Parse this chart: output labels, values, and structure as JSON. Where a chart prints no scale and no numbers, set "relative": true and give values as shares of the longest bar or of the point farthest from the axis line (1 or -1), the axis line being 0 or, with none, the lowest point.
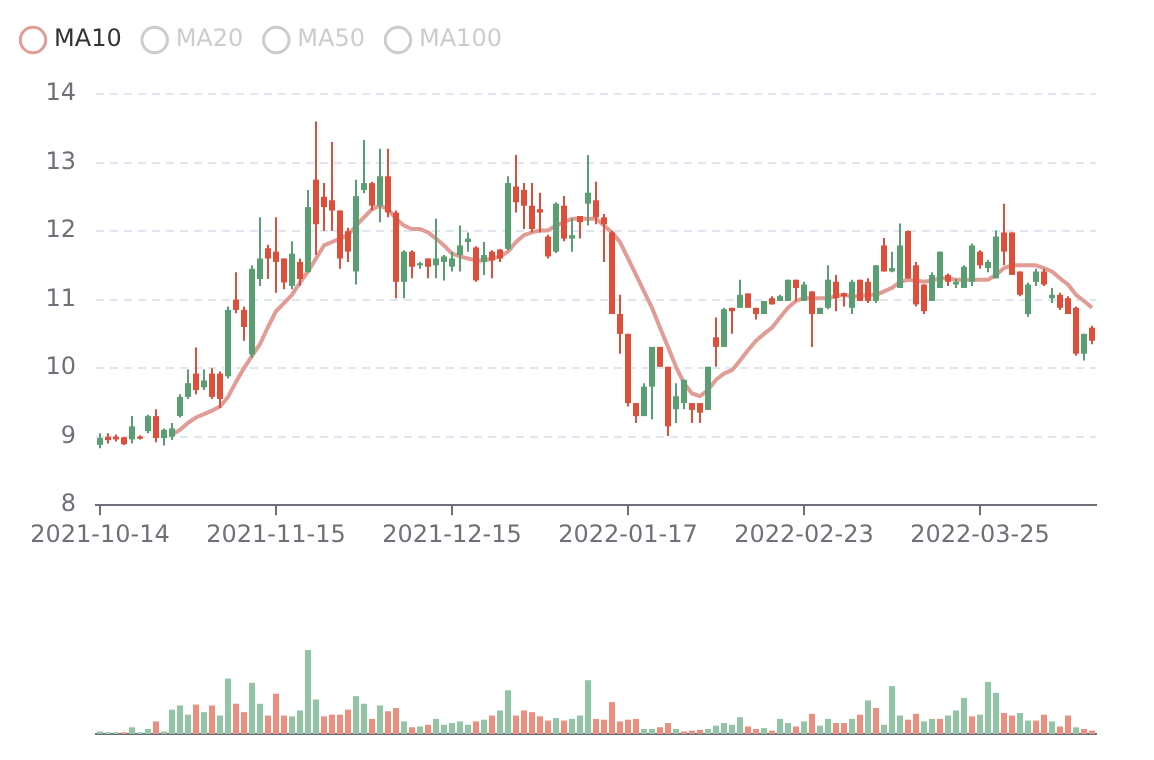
{
  "chart_data": [
    {
      "type": "candlestick",
      "legend": "top left",
      "grid": "y",
      "ylim": [
        8,
        14
      ],
      "yticks": [
        8,
        9,
        10,
        11,
        12,
        13,
        14
      ],
      "categories": [
        "2021-10-14",
        null,
        null,
        null,
        null,
        null,
        null,
        null,
        null,
        null,
        null,
        null,
        null,
        null,
        null,
        null,
        null,
        null,
        null,
        null,
        null,
        null,
        "2021-11-15",
        null,
        null,
        null,
        null,
        null,
        null,
        null,
        null,
        null,
        null,
        null,
        null,
        null,
        null,
        null,
        null,
        null,
        null,
        null,
        null,
        null,
        "2021-12-15",
        null,
        null,
        null,
        null,
        null,
        null,
        null,
        null,
        null,
        null,
        null,
        null,
        null,
        null,
        null,
        null,
        null,
        null,
        null,
        null,
        null,
        "2022-01-17",
        null,
        null,
        null,
        null,
        null,
        null,
        null,
        null,
        null,
        null,
        null,
        null,
        null,
        null,
        null,
        null,
        null,
        null,
        null,
        null,
        null,
        "2022-02-23",
        null,
        null,
        null,
        null,
        null,
        null,
        null,
        null,
        null,
        null,
        null,
        null,
        null,
        null,
        null,
        null,
        null,
        null,
        null,
        null,
        null,
        "2022-03-25",
        null,
        null,
        null,
        null,
        null,
        null,
        null,
        null,
        null,
        null,
        null,
        null,
        null,
        null
      ],
      "ohlc": [
        [
          8.88,
          9.05,
          8.83,
          8.98
        ],
        [
          9.0,
          9.05,
          8.9,
          8.95
        ],
        [
          9.0,
          9.03,
          8.93,
          8.96
        ],
        [
          8.99,
          9.0,
          8.88,
          8.89
        ],
        [
          8.96,
          9.3,
          8.9,
          9.15
        ],
        [
          9.0,
          9.02,
          8.96,
          8.98
        ],
        [
          9.08,
          9.32,
          9.05,
          9.3
        ],
        [
          9.3,
          9.4,
          8.92,
          8.98
        ],
        [
          8.98,
          9.12,
          8.87,
          9.1
        ],
        [
          9.0,
          9.2,
          8.95,
          9.12
        ],
        [
          9.3,
          9.62,
          9.28,
          9.58
        ],
        [
          9.58,
          9.98,
          9.55,
          9.78
        ],
        [
          9.92,
          10.3,
          9.62,
          9.68
        ],
        [
          9.72,
          9.98,
          9.68,
          9.82
        ],
        [
          9.92,
          10.0,
          9.55,
          9.58
        ],
        [
          9.92,
          9.95,
          9.42,
          9.55
        ],
        [
          9.88,
          10.9,
          9.85,
          10.85
        ],
        [
          11.0,
          11.4,
          10.8,
          10.85
        ],
        [
          10.85,
          10.9,
          10.4,
          10.6
        ],
        [
          10.2,
          11.5,
          10.15,
          11.45
        ],
        [
          11.3,
          12.2,
          11.2,
          11.6
        ],
        [
          11.75,
          11.8,
          11.3,
          11.6
        ],
        [
          11.7,
          12.2,
          11.1,
          11.55
        ],
        [
          11.6,
          11.6,
          11.15,
          11.25
        ],
        [
          11.2,
          11.85,
          11.15,
          11.67
        ],
        [
          11.55,
          11.6,
          11.2,
          11.3
        ],
        [
          11.4,
          12.6,
          11.4,
          12.35
        ],
        [
          12.75,
          13.6,
          11.65,
          12.1
        ],
        [
          12.5,
          12.7,
          12.0,
          12.35
        ],
        [
          12.45,
          13.3,
          12.0,
          12.3
        ],
        [
          12.3,
          12.3,
          11.45,
          11.6
        ],
        [
          12.0,
          12.05,
          11.55,
          11.7
        ],
        [
          11.41,
          12.75,
          11.22,
          12.51
        ],
        [
          12.6,
          13.33,
          12.55,
          12.7
        ],
        [
          12.7,
          12.72,
          12.3,
          12.37
        ],
        [
          12.37,
          13.2,
          12.13,
          12.8
        ],
        [
          12.8,
          13.2,
          12.2,
          12.27
        ],
        [
          12.27,
          12.3,
          11.02,
          11.26
        ],
        [
          11.26,
          11.72,
          11.02,
          11.7
        ],
        [
          11.7,
          11.72,
          11.31,
          11.48
        ],
        [
          11.5,
          11.55,
          11.45,
          11.53
        ],
        [
          11.6,
          11.6,
          11.31,
          11.48
        ],
        [
          11.5,
          12.18,
          11.31,
          11.6
        ],
        [
          11.55,
          11.65,
          11.28,
          11.63
        ],
        [
          11.48,
          11.7,
          11.41,
          11.6
        ],
        [
          11.65,
          12.08,
          11.41,
          11.79
        ],
        [
          11.84,
          11.98,
          11.7,
          11.89
        ],
        [
          11.76,
          11.78,
          11.26,
          11.28
        ],
        [
          11.55,
          11.84,
          11.36,
          11.65
        ],
        [
          11.7,
          11.72,
          11.31,
          11.57
        ],
        [
          11.73,
          11.74,
          11.55,
          11.6
        ],
        [
          11.74,
          12.8,
          11.72,
          12.7
        ],
        [
          12.65,
          13.11,
          12.27,
          12.42
        ],
        [
          12.6,
          12.7,
          12.03,
          12.37
        ],
        [
          12.37,
          12.7,
          11.98,
          12.03
        ],
        [
          12.32,
          12.56,
          11.98,
          12.27
        ],
        [
          11.92,
          11.95,
          11.6,
          11.63
        ],
        [
          11.7,
          12.42,
          11.68,
          12.4
        ],
        [
          12.37,
          12.51,
          11.85,
          11.89
        ],
        [
          11.89,
          12.18,
          11.7,
          11.94
        ],
        [
          12.22,
          12.22,
          11.89,
          12.13
        ],
        [
          12.4,
          13.11,
          12.08,
          12.56
        ],
        [
          12.45,
          12.72,
          12.1,
          12.2
        ],
        [
          12.2,
          12.25,
          11.55,
          12.1
        ],
        [
          11.98,
          12.0,
          10.79,
          10.79
        ],
        [
          10.79,
          11.07,
          10.21,
          10.5
        ],
        [
          10.5,
          10.5,
          9.44,
          9.49
        ],
        [
          9.49,
          9.49,
          9.2,
          9.3
        ],
        [
          9.3,
          9.78,
          9.3,
          9.73
        ],
        [
          9.73,
          10.31,
          9.25,
          10.31
        ],
        [
          10.31,
          10.31,
          10.02,
          10.02
        ],
        [
          10.02,
          10.02,
          9.01,
          9.15
        ],
        [
          9.4,
          9.78,
          9.2,
          9.59
        ],
        [
          9.49,
          9.83,
          9.4,
          9.83
        ],
        [
          9.49,
          9.49,
          9.2,
          9.39
        ],
        [
          9.49,
          9.49,
          9.2,
          9.35
        ],
        [
          9.39,
          10.02,
          9.39,
          10.02
        ],
        [
          10.45,
          10.74,
          10.02,
          10.31
        ],
        [
          10.31,
          10.88,
          10.31,
          10.86
        ],
        [
          10.88,
          10.88,
          10.5,
          10.83
        ],
        [
          10.88,
          11.29,
          10.88,
          11.07
        ],
        [
          11.09,
          11.09,
          10.88,
          10.88
        ],
        [
          10.88,
          10.88,
          10.71,
          10.79
        ],
        [
          10.79,
          10.98,
          10.79,
          10.98
        ],
        [
          11.02,
          11.05,
          10.93,
          10.93
        ],
        [
          10.98,
          11.07,
          10.98,
          11.05
        ],
        [
          10.98,
          11.29,
          10.98,
          11.29
        ],
        [
          11.29,
          11.29,
          10.98,
          11.17
        ],
        [
          10.98,
          11.26,
          10.98,
          11.22
        ],
        [
          11.12,
          11.12,
          10.31,
          10.79
        ],
        [
          10.79,
          10.88,
          10.79,
          10.88
        ],
        [
          10.88,
          11.5,
          10.86,
          11.29
        ],
        [
          11.26,
          11.36,
          10.83,
          11.02
        ],
        [
          11.09,
          11.1,
          10.9,
          11.05
        ],
        [
          10.88,
          11.29,
          10.79,
          11.26
        ],
        [
          11.29,
          11.29,
          10.98,
          10.98
        ],
        [
          11.26,
          11.31,
          10.95,
          10.98
        ],
        [
          10.98,
          11.5,
          10.95,
          11.5
        ],
        [
          11.79,
          11.9,
          11.41,
          11.41
        ],
        [
          11.41,
          11.7,
          11.4,
          11.46
        ],
        [
          11.17,
          12.11,
          11.17,
          11.79
        ],
        [
          12.0,
          12.01,
          11.31,
          11.31
        ],
        [
          11.5,
          11.55,
          10.9,
          10.93
        ],
        [
          11.22,
          11.22,
          10.79,
          10.83
        ],
        [
          10.98,
          11.4,
          10.98,
          11.36
        ],
        [
          11.17,
          11.7,
          11.17,
          11.7
        ],
        [
          11.36,
          11.38,
          11.2,
          11.26
        ],
        [
          11.22,
          11.3,
          11.17,
          11.26
        ],
        [
          11.17,
          11.5,
          11.17,
          11.48
        ],
        [
          11.26,
          11.82,
          11.2,
          11.79
        ],
        [
          11.7,
          11.72,
          11.45,
          11.5
        ],
        [
          11.46,
          11.58,
          11.4,
          11.55
        ],
        [
          11.31,
          12.01,
          11.31,
          11.92
        ],
        [
          11.98,
          12.4,
          11.5,
          11.7
        ],
        [
          11.98,
          11.98,
          11.36,
          11.36
        ],
        [
          11.41,
          11.41,
          11.05,
          11.07
        ],
        [
          10.79,
          11.25,
          10.75,
          11.22
        ],
        [
          11.26,
          11.45,
          11.2,
          11.41
        ],
        [
          11.41,
          11.45,
          11.2,
          11.22
        ],
        [
          11.02,
          11.17,
          10.95,
          11.07
        ],
        [
          11.07,
          11.1,
          10.85,
          10.88
        ],
        [
          11.02,
          11.05,
          10.79,
          10.79
        ],
        [
          10.88,
          10.9,
          10.18,
          10.21
        ],
        [
          10.21,
          10.5,
          10.11,
          10.5
        ],
        [
          10.59,
          10.62,
          10.35,
          10.4
        ]
      ],
      "colors": [
        "#5a9e74",
        "#dd4f3a",
        "#dd4f3a",
        "#dd4f3a",
        "#5a9e74",
        "#dd4f3a",
        "#5a9e74",
        "#dd4f3a",
        "#5a9e74",
        "#5a9e74",
        "#5a9e74",
        "#5a9e74",
        "#dd4f3a",
        "#5a9e74",
        "#dd4f3a",
        "#dd4f3a",
        "#5a9e74",
        "#dd4f3a",
        "#dd4f3a",
        "#5a9e74",
        "#5a9e74",
        "#dd4f3a",
        "#dd4f3a",
        "#dd4f3a",
        "#5a9e74",
        "#dd4f3a",
        "#5a9e74",
        "#dd4f3a",
        "#dd4f3a",
        "#dd4f3a",
        "#dd4f3a",
        "#dd4f3a",
        "#5a9e74",
        "#5a9e74",
        "#dd4f3a",
        "#5a9e74",
        "#dd4f3a",
        "#dd4f3a",
        "#5a9e74",
        "#dd4f3a",
        "#5a9e74",
        "#dd4f3a",
        "#5a9e74",
        "#5a9e74",
        "#5a9e74",
        "#5a9e74",
        "#5a9e74",
        "#dd4f3a",
        "#5a9e74",
        "#dd4f3a",
        "#dd4f3a",
        "#5a9e74",
        "#dd4f3a",
        "#dd4f3a",
        "#dd4f3a",
        "#dd4f3a",
        "#dd4f3a",
        "#5a9e74",
        "#dd4f3a",
        "#5a9e74",
        "#dd4f3a",
        "#5a9e74",
        "#dd4f3a",
        "#dd4f3a",
        "#dd4f3a",
        "#dd4f3a",
        "#dd4f3a",
        "#dd4f3a",
        "#5a9e74",
        "#5a9e74",
        "#dd4f3a",
        "#dd4f3a",
        "#5a9e74",
        "#5a9e74",
        "#dd4f3a",
        "#dd4f3a",
        "#5a9e74",
        "#dd4f3a",
        "#5a9e74",
        "#dd4f3a",
        "#5a9e74",
        "#dd4f3a",
        "#dd4f3a",
        "#5a9e74",
        "#dd4f3a",
        "#5a9e74",
        "#5a9e74",
        "#dd4f3a",
        "#5a9e74",
        "#dd4f3a",
        "#5a9e74",
        "#5a9e74",
        "#dd4f3a",
        "#dd4f3a",
        "#5a9e74",
        "#dd4f3a",
        "#dd4f3a",
        "#5a9e74",
        "#dd4f3a",
        "#5a9e74",
        "#5a9e74",
        "#dd4f3a",
        "#dd4f3a",
        "#dd4f3a",
        "#5a9e74",
        "#5a9e74",
        "#dd4f3a",
        "#5a9e74",
        "#5a9e74",
        "#5a9e74",
        "#dd4f3a",
        "#5a9e74",
        "#5a9e74",
        "#dd4f3a",
        "#dd4f3a",
        "#dd4f3a",
        "#5a9e74",
        "#5a9e74",
        "#dd4f3a",
        "#5a9e74",
        "#dd4f3a",
        "#dd4f3a",
        "#dd4f3a",
        "#5a9e74",
        "#dd4f3a"
      ],
      "series": [
        {
          "name": "MA10",
          "type": "line",
          "color": "#e29c96",
          "values": [
            null,
            null,
            null,
            null,
            null,
            null,
            null,
            null,
            null,
            9.03,
            9.1,
            9.2,
            9.28,
            9.33,
            9.38,
            9.44,
            9.58,
            9.8,
            10.0,
            10.18,
            10.35,
            10.6,
            10.83,
            10.95,
            11.07,
            11.25,
            11.41,
            11.6,
            11.79,
            11.84,
            11.89,
            11.94,
            12.08,
            12.2,
            12.32,
            12.37,
            12.32,
            12.18,
            12.08,
            12.03,
            12.03,
            11.98,
            11.89,
            11.79,
            11.67,
            11.63,
            11.6,
            11.57,
            11.57,
            11.6,
            11.63,
            11.7,
            11.84,
            11.94,
            11.98,
            12.01,
            12.01,
            12.08,
            12.13,
            12.18,
            12.18,
            12.18,
            12.18,
            12.08,
            11.98,
            11.84,
            11.6,
            11.36,
            11.12,
            10.88,
            10.59,
            10.31,
            10.02,
            9.78,
            9.63,
            9.59,
            9.68,
            9.83,
            9.92,
            9.97,
            10.11,
            10.26,
            10.4,
            10.5,
            10.59,
            10.74,
            10.88,
            10.98,
            11.02,
            11.02,
            11.02,
            11.02,
            11.05,
            11.07,
            11.05,
            11.05,
            11.07,
            11.07,
            11.12,
            11.17,
            11.26,
            11.29,
            11.28,
            11.26,
            11.28,
            11.31,
            11.31,
            11.29,
            11.29,
            11.29,
            11.29,
            11.29,
            11.36,
            11.46,
            11.5,
            11.5,
            11.5,
            11.5,
            11.46,
            11.41,
            11.31,
            11.22,
            11.07,
            10.98,
            10.88
          ]
        },
        {
          "name": "MA20",
          "type": "line",
          "color": "#cccccc",
          "values": [
            null,
            null,
            null,
            null,
            null,
            null,
            null,
            null,
            null,
            null,
            null,
            null,
            null,
            null,
            null,
            null,
            null,
            null,
            null,
            null,
            null,
            null,
            null,
            null,
            null,
            null,
            null,
            null,
            null,
            null,
            null,
            null,
            null,
            null,
            null,
            null,
            null,
            null,
            null,
            null,
            null,
            null,
            null,
            null,
            null,
            null,
            null,
            null,
            null,
            null,
            null,
            null,
            null,
            null,
            null,
            null,
            null,
            null,
            null,
            null,
            null,
            null,
            null,
            null,
            null,
            null,
            null,
            null,
            null,
            null,
            null,
            null,
            null,
            null,
            null,
            null,
            null,
            null,
            null,
            null,
            null,
            null,
            null,
            null,
            null,
            null,
            null,
            null,
            null,
            null,
            null,
            null,
            null,
            null,
            null,
            null,
            null,
            null,
            null,
            null,
            null,
            null,
            null,
            null,
            null,
            null,
            null,
            null,
            null,
            null,
            null,
            null,
            null,
            null,
            null,
            null,
            null,
            null,
            null,
            null,
            null,
            null,
            null,
            null,
            null
          ]
        },
        {
          "name": "MA50",
          "type": "line",
          "color": "#cccccc",
          "values": [
            null,
            null,
            null,
            null,
            null,
            null,
            null,
            null,
            null,
            null,
            null,
            null,
            null,
            null,
            null,
            null,
            null,
            null,
            null,
            null,
            null,
            null,
            null,
            null,
            null,
            null,
            null,
            null,
            null,
            null,
            null,
            null,
            null,
            null,
            null,
            null,
            null,
            null,
            null,
            null,
            null,
            null,
            null,
            null,
            null,
            null,
            null,
            null,
            null,
            null,
            null,
            null,
            null,
            null,
            null,
            null,
            null,
            null,
            null,
            null,
            null,
            null,
            null,
            null,
            null,
            null,
            null,
            null,
            null,
            null,
            null,
            null,
            null,
            null,
            null,
            null,
            null,
            null,
            null,
            null,
            null,
            null,
            null,
            null,
            null,
            null,
            null,
            null,
            null,
            null,
            null,
            null,
            null,
            null,
            null,
            null,
            null,
            null,
            null,
            null,
            null,
            null,
            null,
            null,
            null,
            null,
            null,
            null,
            null,
            null,
            null,
            null,
            null,
            null,
            null,
            null,
            null,
            null,
            null,
            null,
            null,
            null,
            null,
            null,
            null
          ]
        },
        {
          "name": "MA100",
          "type": "line",
          "color": "#cccccc",
          "values": [
            null,
            null,
            null,
            null,
            null,
            null,
            null,
            null,
            null,
            null,
            null,
            null,
            null,
            null,
            null,
            null,
            null,
            null,
            null,
            null,
            null,
            null,
            null,
            null,
            null,
            null,
            null,
            null,
            null,
            null,
            null,
            null,
            null,
            null,
            null,
            null,
            null,
            null,
            null,
            null,
            null,
            null,
            null,
            null,
            null,
            null,
            null,
            null,
            null,
            null,
            null,
            null,
            null,
            null,
            null,
            null,
            null,
            null,
            null,
            null,
            null,
            null,
            null,
            null,
            null,
            null,
            null,
            null,
            null,
            null,
            null,
            null,
            null,
            null,
            null,
            null,
            null,
            null,
            null,
            null,
            null,
            null,
            null,
            null,
            null,
            null,
            null,
            null,
            null,
            null,
            null,
            null,
            null,
            null,
            null,
            null,
            null,
            null,
            null,
            null,
            null,
            null,
            null,
            null,
            null,
            null,
            null,
            null,
            null,
            null,
            null,
            null,
            null,
            null,
            null,
            null,
            null,
            null,
            null,
            null,
            null,
            null,
            null,
            null,
            null
          ]
        }
      ]
    },
    {
      "type": "bar",
      "relative": true,
      "categories": [
        null,
        null,
        null,
        null,
        null,
        null,
        null,
        null,
        null,
        null,
        null,
        null,
        null,
        null,
        null,
        null,
        null,
        null,
        null,
        null,
        null,
        null,
        null,
        null,
        null,
        null,
        null,
        null,
        null,
        null,
        null,
        null,
        null,
        null,
        null,
        null,
        null,
        null,
        null,
        null,
        null,
        null,
        null,
        null,
        null,
        null,
        null,
        null,
        null,
        null,
        null,
        null,
        null,
        null,
        null,
        null,
        null,
        null,
        null,
        null,
        null,
        null,
        null,
        null,
        null,
        null,
        null,
        null,
        null,
        null,
        null,
        null,
        null,
        null,
        null,
        null,
        null,
        null,
        null,
        null,
        null,
        null,
        null,
        null,
        null,
        null,
        null,
        null,
        null,
        null,
        null,
        null,
        null,
        null,
        null,
        null,
        null,
        null,
        null,
        null,
        null,
        null,
        null,
        null,
        null,
        null,
        null,
        null,
        null,
        null,
        null,
        null,
        null,
        null,
        null,
        null,
        null,
        null,
        null,
        null,
        null,
        null,
        null,
        null,
        null
      ],
      "values": [
        0.03,
        0.02,
        0.02,
        0.02,
        0.08,
        0.02,
        0.06,
        0.15,
        0.03,
        0.29,
        0.34,
        0.23,
        0.35,
        0.26,
        0.34,
        0.22,
        0.66,
        0.36,
        0.26,
        0.61,
        0.36,
        0.22,
        0.48,
        0.22,
        0.21,
        0.28,
        1,
        0.41,
        0.21,
        0.23,
        0.23,
        0.29,
        0.45,
        0.36,
        0.18,
        0.34,
        0.27,
        0.31,
        0.15,
        0.08,
        0.09,
        0.11,
        0.18,
        0.11,
        0.13,
        0.15,
        0.11,
        0.15,
        0.17,
        0.22,
        0.28,
        0.52,
        0.22,
        0.28,
        0.26,
        0.21,
        0.16,
        0.19,
        0.16,
        0.18,
        0.22,
        0.64,
        0.18,
        0.17,
        0.38,
        0.15,
        0.17,
        0.18,
        0.06,
        0.06,
        0.08,
        0.13,
        0.06,
        0.03,
        0.04,
        0.05,
        0.06,
        0.1,
        0.13,
        0.11,
        0.2,
        0.09,
        0.06,
        0.07,
        0.04,
        0.18,
        0.13,
        0.09,
        0.15,
        0.24,
        0.1,
        0.18,
        0.13,
        0.13,
        0.18,
        0.23,
        0.4,
        0.31,
        0.11,
        0.57,
        0.22,
        0.17,
        0.24,
        0.15,
        0.18,
        0.18,
        0.22,
        0.28,
        0.43,
        0.21,
        0.23,
        0.62,
        0.49,
        0.25,
        0.22,
        0.25,
        0.16,
        0.16,
        0.23,
        0.15,
        0.09,
        0.22,
        0.08,
        0.06,
        0.04
      ],
      "colors": [
        "#93c4a6",
        "#93c4a6",
        "#93c4a6",
        "#eb8f80",
        "#93c4a6",
        "#93c4a6",
        "#93c4a6",
        "#eb8f80",
        "#93c4a6",
        "#93c4a6",
        "#93c4a6",
        "#93c4a6",
        "#eb8f80",
        "#93c4a6",
        "#eb8f80",
        "#93c4a6",
        "#93c4a6",
        "#eb8f80",
        "#eb8f80",
        "#93c4a6",
        "#93c4a6",
        "#eb8f80",
        "#eb8f80",
        "#eb8f80",
        "#93c4a6",
        "#93c4a6",
        "#93c4a6",
        "#93c4a6",
        "#eb8f80",
        "#eb8f80",
        "#eb8f80",
        "#eb8f80",
        "#93c4a6",
        "#93c4a6",
        "#eb8f80",
        "#93c4a6",
        "#eb8f80",
        "#eb8f80",
        "#93c4a6",
        "#eb8f80",
        "#93c4a6",
        "#eb8f80",
        "#93c4a6",
        "#93c4a6",
        "#93c4a6",
        "#93c4a6",
        "#93c4a6",
        "#eb8f80",
        "#93c4a6",
        "#eb8f80",
        "#93c4a6",
        "#93c4a6",
        "#eb8f80",
        "#eb8f80",
        "#eb8f80",
        "#eb8f80",
        "#eb8f80",
        "#93c4a6",
        "#eb8f80",
        "#93c4a6",
        "#93c4a6",
        "#93c4a6",
        "#eb8f80",
        "#eb8f80",
        "#eb8f80",
        "#eb8f80",
        "#eb8f80",
        "#eb8f80",
        "#93c4a6",
        "#93c4a6",
        "#eb8f80",
        "#eb8f80",
        "#93c4a6",
        "#eb8f80",
        "#eb8f80",
        "#eb8f80",
        "#93c4a6",
        "#93c4a6",
        "#93c4a6",
        "#93c4a6",
        "#93c4a6",
        "#eb8f80",
        "#eb8f80",
        "#93c4a6",
        "#eb8f80",
        "#93c4a6",
        "#93c4a6",
        "#eb8f80",
        "#93c4a6",
        "#eb8f80",
        "#93c4a6",
        "#93c4a6",
        "#eb8f80",
        "#eb8f80",
        "#93c4a6",
        "#eb8f80",
        "#93c4a6",
        "#eb8f80",
        "#93c4a6",
        "#93c4a6",
        "#93c4a6",
        "#eb8f80",
        "#eb8f80",
        "#93c4a6",
        "#93c4a6",
        "#eb8f80",
        "#93c4a6",
        "#93c4a6",
        "#93c4a6",
        "#eb8f80",
        "#93c4a6",
        "#93c4a6",
        "#93c4a6",
        "#eb8f80",
        "#eb8f80",
        "#93c4a6",
        "#93c4a6",
        "#eb8f80",
        "#eb8f80",
        "#93c4a6",
        "#eb8f80",
        "#eb8f80",
        "#93c4a6",
        "#eb8f80",
        "#eb8f80"
      ]
    }
  ]
}
